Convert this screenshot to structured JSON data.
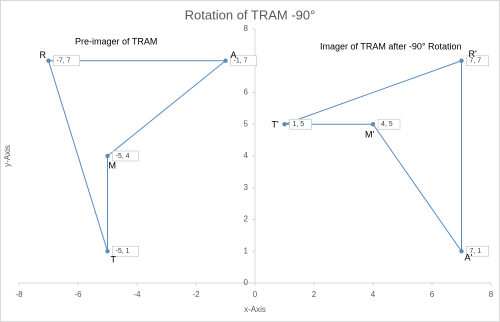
{
  "chart_data": {
    "type": "scatter",
    "title": "Rotation of TRAM -90°",
    "x_label": "x-Axis",
    "y_label": "y-Axis",
    "xlim": [
      -8,
      8
    ],
    "ylim": [
      0,
      8
    ],
    "xticks": [
      -8,
      -6,
      -4,
      -2,
      0,
      2,
      4,
      6,
      8
    ],
    "yticks": [
      0,
      1,
      2,
      3,
      4,
      5,
      6,
      7,
      8
    ],
    "grid": false,
    "closed": true,
    "annotations": [
      "Pre-imager of TRAM",
      "Imager of TRAM after -90° Rotation"
    ],
    "series": [
      {
        "color": "#5b8cc0",
        "x": [
          -7,
          -1,
          -5,
          -5
        ],
        "values": [
          7,
          7,
          4,
          1
        ],
        "value_labels": [
          "-7, 7",
          "-1, 7",
          "-5, 4",
          "-5, 1"
        ],
        "point_labels": [
          "R",
          "A",
          "M",
          "T"
        ]
      },
      {
        "color": "#5b8cc0",
        "x": [
          7,
          1,
          4,
          7
        ],
        "values": [
          7,
          5,
          5,
          1
        ],
        "value_labels": [
          "7, 7",
          "1, 5",
          "4, 5",
          "7, 1"
        ],
        "point_labels": [
          "R'",
          "T'",
          "M'",
          "A'"
        ]
      }
    ]
  }
}
